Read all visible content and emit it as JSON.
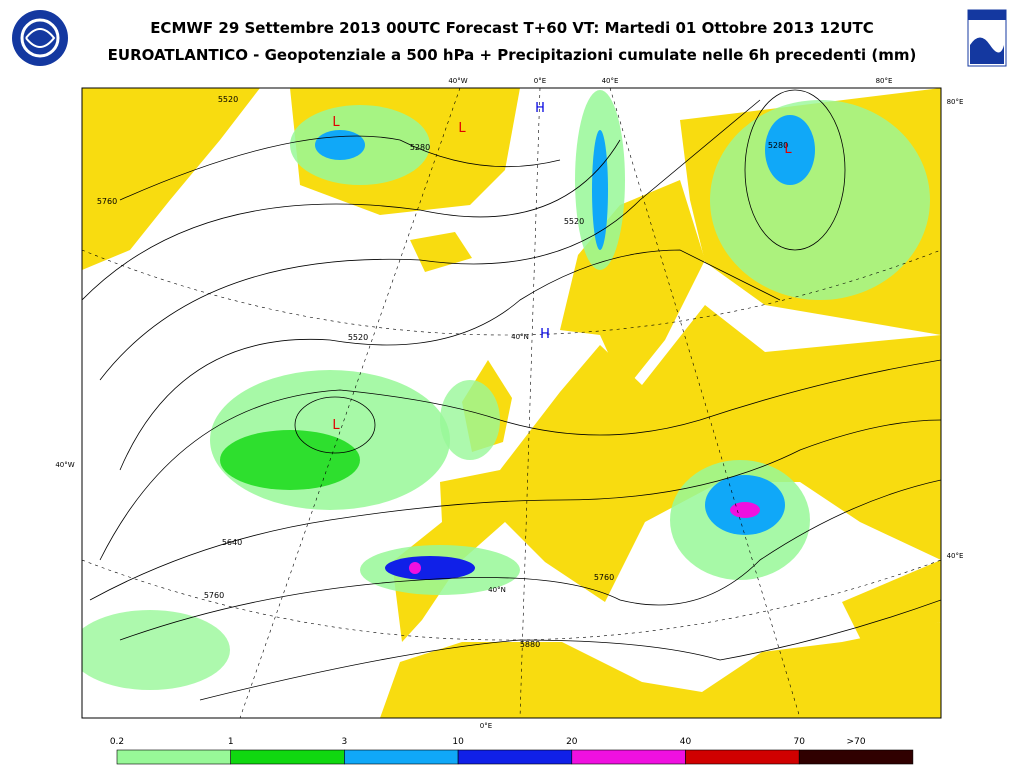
{
  "header": {
    "title": "ECMWF 29 Settembre 2013 00UTC Forecast T+60 VT: Martedi 01 Ottobre 2013 12UTC",
    "subtitle": "EUROATLANTICO - Geopotenziale a 500 hPa + Precipitazioni cumulate nelle 6h precedenti (mm)"
  },
  "map": {
    "graticule_labels": [
      "40°W",
      "0°E",
      "40°E",
      "80°E",
      "80°E",
      "40°W",
      "40°E",
      "40°N",
      "40°N",
      "0°E"
    ],
    "contour_labels": [
      "5520",
      "5280",
      "5760",
      "5520",
      "5280",
      "5520",
      "5640",
      "5760",
      "5760",
      "5880"
    ],
    "pressure_centers": [
      {
        "label": "L",
        "color": "#e00000"
      },
      {
        "label": "L",
        "color": "#e00000"
      },
      {
        "label": "L",
        "color": "#e00000"
      },
      {
        "label": "L",
        "color": "#e00000"
      },
      {
        "label": "H",
        "color": "#0000e0"
      },
      {
        "label": "H",
        "color": "#0000e0"
      }
    ]
  },
  "legend": {
    "labels": [
      "0.2",
      "1",
      "3",
      "10",
      "20",
      "40",
      "70",
      ">70"
    ],
    "colors": [
      "#98f898",
      "#10d810",
      "#10a8f8",
      "#1020e8",
      "#f010e0",
      "#d00000",
      "#300000"
    ]
  }
}
